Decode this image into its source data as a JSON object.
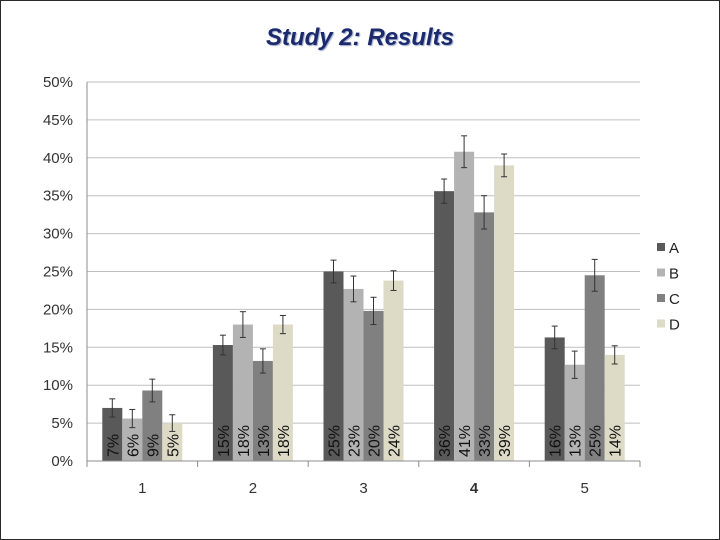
{
  "title": "Study 2: Results",
  "colors": {
    "A": "#595959",
    "B": "#b3b3b3",
    "C": "#808080",
    "D": "#dddac6",
    "grid": "#bfbfbf",
    "axis": "#8c8c8c",
    "errorbar": "#333333"
  },
  "chart_data": {
    "type": "bar",
    "title": "Study 2: Results",
    "xlabel": "",
    "ylabel": "",
    "ylim": [
      0,
      50
    ],
    "yticks": [
      "0%",
      "5%",
      "10%",
      "15%",
      "20%",
      "25%",
      "30%",
      "35%",
      "40%",
      "45%",
      "50%"
    ],
    "grid": true,
    "legend_position": "right",
    "categories": [
      "1",
      "2",
      "3",
      "4",
      "5"
    ],
    "category_bold": [
      false,
      false,
      false,
      true,
      false
    ],
    "series": [
      {
        "name": "A",
        "values": [
          7,
          15.3,
          25,
          35.6,
          16.3
        ],
        "labels": [
          "7%",
          "15%",
          "25%",
          "36%",
          "16%"
        ],
        "error": [
          1.2,
          1.3,
          1.5,
          1.6,
          1.5
        ]
      },
      {
        "name": "B",
        "values": [
          5.6,
          18,
          22.7,
          40.8,
          12.7
        ],
        "labels": [
          "6%",
          "18%",
          "23%",
          "41%",
          "13%"
        ],
        "error": [
          1.2,
          1.7,
          1.7,
          2.1,
          1.8
        ]
      },
      {
        "name": "C",
        "values": [
          9.3,
          13.2,
          19.8,
          32.8,
          24.5
        ],
        "labels": [
          "9%",
          "13%",
          "20%",
          "33%",
          "25%"
        ],
        "error": [
          1.5,
          1.6,
          1.8,
          2.2,
          2.1
        ]
      },
      {
        "name": "D",
        "values": [
          5,
          18,
          23.8,
          39,
          14
        ],
        "labels": [
          "5%",
          "18%",
          "24%",
          "39%",
          "14%"
        ],
        "error": [
          1.1,
          1.2,
          1.3,
          1.5,
          1.2
        ]
      }
    ]
  }
}
